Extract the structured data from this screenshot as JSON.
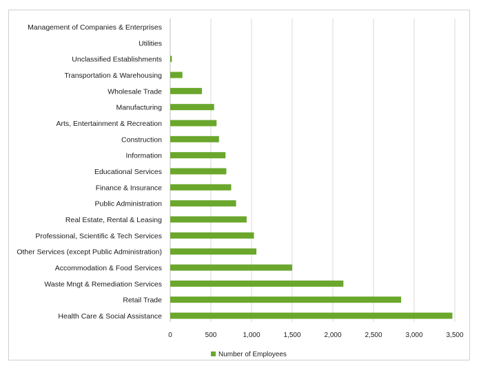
{
  "chart_data": {
    "type": "bar",
    "orientation": "horizontal",
    "categories": [
      "Management of Companies & Enterprises",
      "Utilities",
      "Unclassified Establishments",
      "Transportation & Warehousing",
      "Wholesale Trade",
      "Manufacturing",
      "Arts, Entertainment & Recreation",
      "Construction",
      "Information",
      "Educational Services",
      "Finance & Insurance",
      "Public Administration",
      "Real Estate, Rental & Leasing",
      "Professional, Scientific & Tech Services",
      "Other Services (except Public Administration)",
      "Accommodation & Food Services",
      "Waste Mngt & Remediation Services",
      "Retail Trade",
      "Health Care & Social Assistance"
    ],
    "series": [
      {
        "name": "Number of Employees",
        "color": "#6aa72c",
        "values": [
          0,
          0,
          20,
          150,
          390,
          540,
          570,
          600,
          680,
          690,
          750,
          810,
          940,
          1030,
          1060,
          1500,
          2130,
          2840,
          3470
        ]
      }
    ],
    "xticks": [
      "0",
      "500",
      "1,000",
      "1,500",
      "2,000",
      "2,500",
      "3,000",
      "3,500"
    ],
    "xlim": [
      0,
      3500
    ],
    "grid": "vertical",
    "legend_position": "bottom"
  }
}
